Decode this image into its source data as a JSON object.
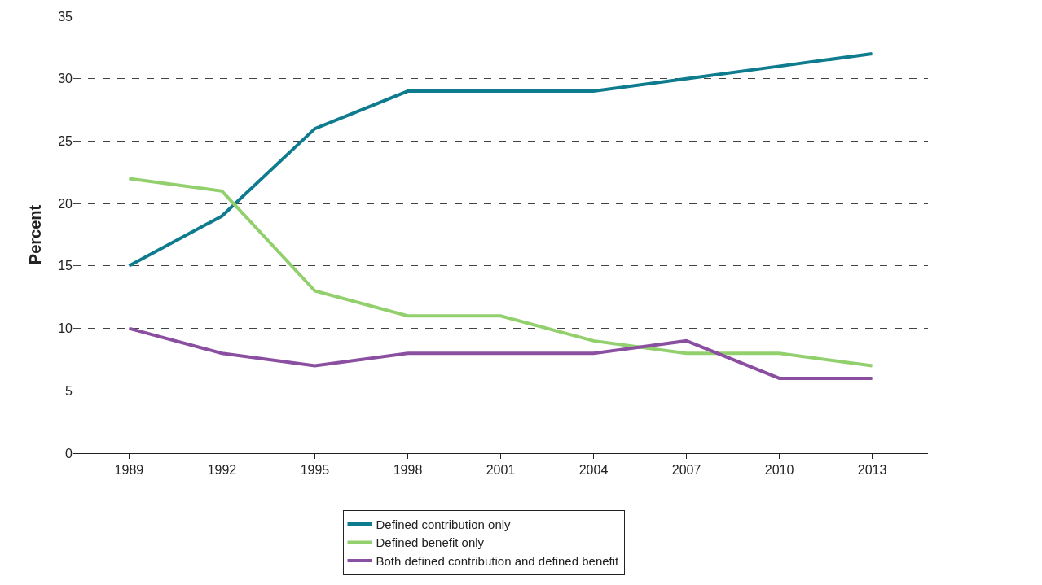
{
  "chart_data": {
    "type": "line",
    "ylabel": "Percent",
    "categories": [
      "1989",
      "1992",
      "1995",
      "1998",
      "2001",
      "2004",
      "2007",
      "2010",
      "2013"
    ],
    "series": [
      {
        "name": "Defined contribution only",
        "color": "#0e7c8e",
        "values": [
          15,
          19,
          26,
          29,
          29,
          29,
          30,
          31,
          32
        ]
      },
      {
        "name": "Defined benefit only",
        "color": "#92cf6d",
        "values": [
          22,
          21,
          13,
          11,
          11,
          9,
          8,
          8,
          7
        ]
      },
      {
        "name": "Both defined contribution and defined benefit",
        "color": "#8a4fa0",
        "values": [
          10,
          8,
          7,
          8,
          8,
          8,
          9,
          6,
          6
        ]
      }
    ],
    "ylim": [
      0,
      35
    ],
    "yticks": [
      0,
      5,
      10,
      15,
      20,
      25,
      30,
      35
    ],
    "grid": "y",
    "legend": "bottom"
  }
}
